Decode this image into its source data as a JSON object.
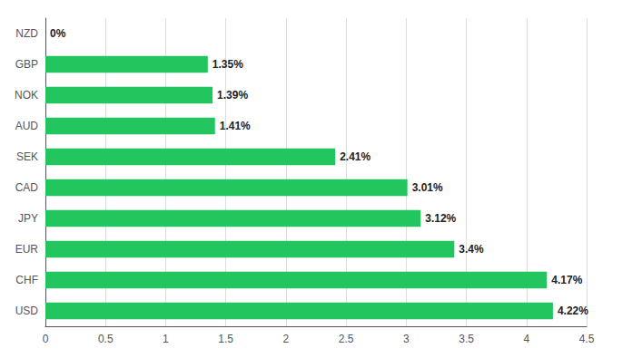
{
  "chart_data": {
    "type": "bar",
    "orientation": "horizontal",
    "categories": [
      "USD",
      "CHF",
      "EUR",
      "JPY",
      "CAD",
      "SEK",
      "AUD",
      "NOK",
      "GBP",
      "NZD"
    ],
    "values": [
      4.22,
      4.17,
      3.4,
      3.12,
      3.01,
      2.41,
      1.41,
      1.39,
      1.35,
      0
    ],
    "value_labels": [
      "4.22%",
      "4.17%",
      "3.4%",
      "3.12%",
      "3.01%",
      "2.41%",
      "1.41%",
      "1.39%",
      "1.35%",
      "0%"
    ],
    "data_labels": true,
    "color": "#22c55e",
    "xlim": [
      0,
      4.5
    ],
    "xticks": [
      0,
      0.5,
      1,
      1.5,
      2,
      2.5,
      3,
      3.5,
      4,
      4.5
    ],
    "grid": true
  }
}
